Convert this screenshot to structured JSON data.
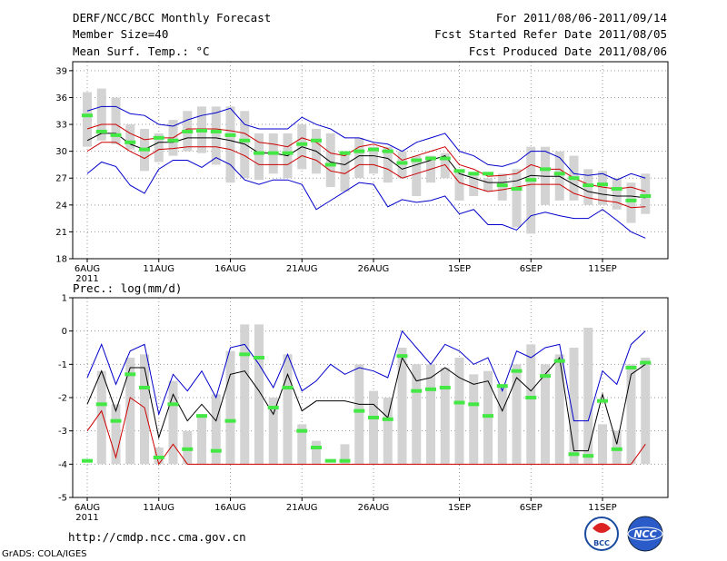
{
  "header": {
    "title": "DERF/NCC/BCC Monthly Forecast",
    "member_size": "Member Size=40",
    "variable": "Mean Surf. Temp.: °C",
    "period": "For 2011/08/06-2011/09/14",
    "started": "Fcst Started Refer Date 2011/08/05",
    "produced": "Fcst Produced Date 2011/08/06"
  },
  "footer": {
    "url": "http://cmdp.ncc.cma.gov.cn",
    "credit": "GrADS: COLA/IGES",
    "logo_bcc": "BCC",
    "logo_ncc": "NCC"
  },
  "colors": {
    "band": "#d3d3d3",
    "median": "#44e844",
    "outer": "#0000cc",
    "mean": "#000000",
    "spread": "#cc0000",
    "grid": "#9a9a9a"
  },
  "chart_data": [
    {
      "type": "line",
      "title": "Mean Surf. Temp.: °C",
      "x_labels": [
        "6AUG",
        "11AUG",
        "16AUG",
        "21AUG",
        "26AUG",
        "1SEP",
        "6SEP",
        "11SEP"
      ],
      "x_label_days": [
        0,
        5,
        10,
        15,
        20,
        26,
        31,
        36
      ],
      "year_label": "2011",
      "ylim": [
        18,
        40
      ],
      "yticks": [
        18,
        21,
        24,
        27,
        30,
        33,
        36,
        39
      ],
      "box_low": [
        30.5,
        31.2,
        30.8,
        30.2,
        27.8,
        28.8,
        29.5,
        30.0,
        29.8,
        28.5,
        26.5,
        27.0,
        26.8,
        27.5,
        27.0,
        28.0,
        27.5,
        26.0,
        25.5,
        27.0,
        27.5,
        26.5,
        27.0,
        25.0,
        26.5,
        27.0,
        24.5,
        25.0,
        25.5,
        24.5,
        21.5,
        20.8,
        24.0,
        24.5,
        24.5,
        24.0,
        24.0,
        23.5,
        22.0,
        23.0
      ],
      "box_high": [
        36.6,
        37.0,
        36.0,
        33.0,
        32.5,
        32.0,
        33.5,
        34.5,
        35.0,
        35.0,
        35.0,
        34.5,
        32.0,
        32.0,
        32.0,
        33.0,
        32.5,
        32.0,
        30.0,
        31.5,
        30.5,
        30.5,
        30.0,
        29.5,
        29.5,
        29.8,
        28.0,
        27.5,
        27.0,
        27.5,
        28.0,
        30.5,
        30.5,
        30.0,
        29.5,
        28.0,
        27.8,
        27.0,
        26.5,
        27.5
      ],
      "median": [
        34.0,
        32.2,
        31.8,
        31.0,
        30.2,
        31.5,
        31.2,
        32.2,
        32.3,
        32.2,
        31.8,
        31.2,
        29.8,
        29.8,
        29.8,
        30.8,
        31.2,
        28.5,
        29.8,
        30.0,
        30.2,
        30.0,
        28.7,
        29.0,
        29.2,
        29.2,
        27.8,
        27.5,
        27.5,
        26.2,
        25.8,
        26.8,
        28.0,
        27.5,
        27.0,
        26.2,
        26.3,
        25.8,
        24.5,
        25.0
      ],
      "series": [
        {
          "name": "max",
          "color": "#0000cc",
          "values": [
            34.5,
            35.0,
            35.0,
            34.2,
            34.0,
            33.0,
            32.8,
            33.5,
            34.0,
            34.3,
            34.8,
            33.0,
            32.5,
            32.5,
            32.5,
            33.8,
            33.0,
            32.5,
            31.5,
            31.5,
            31.0,
            30.8,
            30.0,
            31.0,
            31.5,
            32.0,
            30.0,
            29.5,
            28.5,
            28.3,
            28.8,
            30.0,
            30.0,
            29.3,
            27.5,
            27.3,
            27.5,
            26.8,
            27.5,
            27.0
          ]
        },
        {
          "name": "mean+sd",
          "color": "#cc0000",
          "values": [
            32.5,
            33.0,
            33.0,
            32.0,
            31.3,
            31.5,
            31.5,
            32.5,
            32.5,
            32.5,
            32.3,
            32.0,
            31.0,
            30.8,
            30.5,
            31.5,
            31.0,
            29.8,
            29.5,
            30.5,
            30.8,
            30.3,
            29.0,
            29.5,
            30.0,
            30.5,
            28.5,
            28.0,
            27.2,
            27.3,
            27.5,
            28.5,
            28.0,
            28.0,
            27.0,
            26.3,
            26.0,
            25.8,
            26.0,
            25.5
          ]
        },
        {
          "name": "mean",
          "color": "#000000",
          "values": [
            31.2,
            32.0,
            32.0,
            30.8,
            30.2,
            31.0,
            31.0,
            31.5,
            31.5,
            31.5,
            31.2,
            30.8,
            29.8,
            29.8,
            29.5,
            30.5,
            30.0,
            28.8,
            28.5,
            29.5,
            29.5,
            29.2,
            28.0,
            28.5,
            29.0,
            29.5,
            27.5,
            27.0,
            26.5,
            26.5,
            26.7,
            27.3,
            27.2,
            27.2,
            26.3,
            25.5,
            25.2,
            25.0,
            25.0,
            24.8
          ]
        },
        {
          "name": "mean-sd",
          "color": "#cc0000",
          "values": [
            30.0,
            31.0,
            31.0,
            30.0,
            29.2,
            30.2,
            30.3,
            30.5,
            30.5,
            30.5,
            30.2,
            29.5,
            28.5,
            28.5,
            28.5,
            29.5,
            29.0,
            27.8,
            27.5,
            28.5,
            28.5,
            28.0,
            27.0,
            27.5,
            28.0,
            28.5,
            26.5,
            26.0,
            25.5,
            25.7,
            26.0,
            26.3,
            26.3,
            26.3,
            25.3,
            24.8,
            24.5,
            24.3,
            23.7,
            23.8
          ]
        },
        {
          "name": "min",
          "color": "#0000cc",
          "values": [
            27.5,
            28.8,
            28.3,
            26.2,
            25.3,
            28.0,
            29.0,
            29.0,
            28.2,
            29.3,
            28.5,
            26.8,
            26.3,
            26.8,
            26.8,
            26.3,
            23.5,
            24.5,
            25.5,
            26.5,
            26.3,
            23.8,
            24.6,
            24.3,
            24.5,
            25.0,
            23.0,
            23.5,
            21.8,
            21.8,
            21.2,
            22.8,
            23.2,
            22.8,
            22.5,
            22.5,
            23.5,
            22.3,
            21.0,
            20.3
          ]
        }
      ]
    },
    {
      "type": "line",
      "title": "Prec.: log(mm/d)",
      "x_labels": [
        "6AUG",
        "11AUG",
        "16AUG",
        "21AUG",
        "26AUG",
        "1SEP",
        "6SEP",
        "11SEP"
      ],
      "x_label_days": [
        0,
        5,
        10,
        15,
        20,
        26,
        31,
        36
      ],
      "year_label": "2011",
      "ylim": [
        -5,
        1
      ],
      "yticks": [
        -5,
        -4,
        -3,
        -2,
        -1,
        0,
        1
      ],
      "box_low": [
        -4,
        -4,
        -4,
        -4,
        -4,
        -4,
        -4,
        -4,
        -4,
        -4,
        -4,
        -4,
        -4,
        -4,
        -4,
        -4,
        -4,
        -4,
        -4,
        -4,
        -4,
        -4,
        -4,
        -4,
        -4,
        -4,
        -4,
        -4,
        -4,
        -4,
        -4,
        -4,
        -4,
        -4,
        -4,
        -4,
        -4,
        -4,
        -4,
        -4
      ],
      "box_high": [
        -4.0,
        -1.2,
        -2.2,
        -0.8,
        -0.7,
        -3.5,
        -1.5,
        -3.0,
        -2.5,
        -1.9,
        -0.6,
        0.2,
        0.2,
        -2.0,
        -0.7,
        -2.8,
        -3.3,
        -4.0,
        -3.4,
        -1.0,
        -1.8,
        -2.0,
        -0.5,
        -1.0,
        -1.0,
        -1.1,
        -0.8,
        -1.3,
        -1.2,
        -1.6,
        -1.0,
        -0.4,
        -1.0,
        -0.7,
        -0.5,
        0.1,
        -2.8,
        -3.0,
        -1.0,
        -0.8
      ],
      "median": [
        -3.9,
        -2.2,
        -2.7,
        -1.3,
        -1.7,
        -3.8,
        -2.2,
        -3.55,
        -2.55,
        -3.6,
        -2.7,
        -0.7,
        -0.8,
        -2.3,
        -1.7,
        -3.0,
        -3.5,
        -3.9,
        -3.9,
        -2.4,
        -2.6,
        -2.65,
        -0.75,
        -1.8,
        -1.75,
        -1.7,
        -2.15,
        -2.2,
        -2.55,
        -1.65,
        -1.2,
        -2.0,
        -1.35,
        -0.9,
        -3.7,
        -3.75,
        -2.1,
        -3.55,
        -1.1,
        -0.95
      ],
      "series": [
        {
          "name": "max",
          "color": "#0000cc",
          "values": [
            -1.4,
            -0.4,
            -1.6,
            -0.6,
            -0.4,
            -2.5,
            -1.3,
            -1.8,
            -1.2,
            -2.0,
            -0.5,
            -0.4,
            -1.0,
            -1.7,
            -0.7,
            -1.8,
            -1.5,
            -1.0,
            -1.3,
            -1.1,
            -1.2,
            -1.4,
            0.0,
            -0.5,
            -1.0,
            -0.4,
            -0.6,
            -1.0,
            -0.8,
            -1.8,
            -0.6,
            -0.8,
            -0.5,
            -0.4,
            -2.7,
            -2.7,
            -1.2,
            -1.6,
            -0.4,
            0.0
          ]
        },
        {
          "name": "mean",
          "color": "#000000",
          "values": [
            -2.2,
            -1.2,
            -2.4,
            -1.1,
            -1.1,
            -3.2,
            -1.9,
            -2.7,
            -2.2,
            -2.7,
            -1.3,
            -1.2,
            -1.8,
            -2.5,
            -1.3,
            -2.4,
            -2.1,
            -2.1,
            -2.1,
            -2.2,
            -2.2,
            -2.6,
            -0.8,
            -1.5,
            -1.4,
            -1.1,
            -1.4,
            -1.6,
            -1.5,
            -2.4,
            -1.4,
            -1.8,
            -1.3,
            -0.8,
            -3.6,
            -3.6,
            -1.9,
            -3.4,
            -1.3,
            -1.0
          ]
        },
        {
          "name": "min",
          "color": "#cc0000",
          "values": [
            -3.0,
            -2.4,
            -3.8,
            -2.0,
            -2.3,
            -4.0,
            -3.4,
            -4.0,
            -4.0,
            -4.0,
            -4.0,
            -4.0,
            -4.0,
            -4.0,
            -4.0,
            -4.0,
            -4.0,
            -4.0,
            -4.0,
            -4.0,
            -4.0,
            -4.0,
            -4.0,
            -4.0,
            -4.0,
            -4.0,
            -4.0,
            -4.0,
            -4.0,
            -4.0,
            -4.0,
            -4.0,
            -4.0,
            -4.0,
            -4.0,
            -4.0,
            -4.0,
            -4.0,
            -4.0,
            -3.4
          ]
        }
      ]
    }
  ]
}
